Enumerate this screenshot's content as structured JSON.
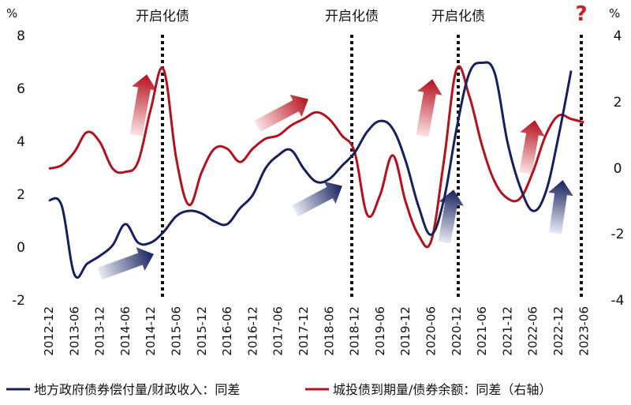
{
  "chart_data": {
    "type": "line",
    "left_axis_unit": "%",
    "right_axis_unit": "%",
    "left_ticks": [
      "8",
      "6",
      "4",
      "2",
      "0",
      "-2"
    ],
    "right_ticks": [
      "4",
      "2",
      "0",
      "-2",
      "-4"
    ],
    "ylim_left": [
      -2,
      8
    ],
    "ylim_right": [
      -4,
      4
    ],
    "x_ticks": [
      "2012-12",
      "2013-06",
      "2013-12",
      "2014-06",
      "2014-12",
      "2015-06",
      "2015-12",
      "2016-06",
      "2016-12",
      "2017-06",
      "2017-12",
      "2018-06",
      "2018-12",
      "2019-06",
      "2019-12",
      "2020-06",
      "2020-12",
      "2021-06",
      "2021-12",
      "2022-06",
      "2022-12",
      "2023-06"
    ],
    "event_lines": [
      {
        "date": "2015-01",
        "label": "开启化债"
      },
      {
        "date": "2018-12",
        "label": "开启化债"
      },
      {
        "date": "2020-12",
        "label": "开启化债"
      },
      {
        "date": "2023-06",
        "label": "?"
      }
    ],
    "series": [
      {
        "name": "地方政府债券偿付量/财政收入：同差",
        "axis": "left",
        "color": "#16205e",
        "x": [
          "2012-12",
          "2013-03",
          "2013-06",
          "2013-09",
          "2013-12",
          "2014-03",
          "2014-06",
          "2014-09",
          "2014-12",
          "2015-03",
          "2015-06",
          "2015-09",
          "2015-12",
          "2016-03",
          "2016-06",
          "2016-09",
          "2016-12",
          "2017-03",
          "2017-06",
          "2017-09",
          "2017-12",
          "2018-03",
          "2018-06",
          "2018-09",
          "2018-12",
          "2019-03",
          "2019-06",
          "2019-09",
          "2019-12",
          "2020-03",
          "2020-06",
          "2020-09",
          "2020-12",
          "2021-03",
          "2021-06",
          "2021-09",
          "2021-12",
          "2022-03",
          "2022-06",
          "2022-09",
          "2022-12",
          "2023-03"
        ],
        "y": [
          1.8,
          1.6,
          -1.0,
          -0.6,
          -0.3,
          0.1,
          0.9,
          0.2,
          0.2,
          0.6,
          1.2,
          1.4,
          1.3,
          1.0,
          0.9,
          1.5,
          2.0,
          3.0,
          3.5,
          3.7,
          3.0,
          2.5,
          2.6,
          3.1,
          3.6,
          4.4,
          4.8,
          4.5,
          3.3,
          1.6,
          0.5,
          1.8,
          4.5,
          6.6,
          7.0,
          6.6,
          4.0,
          2.3,
          1.4,
          2.1,
          4.2,
          6.7
        ]
      },
      {
        "name": "城投债到期量/债券余额：同差（右轴）",
        "axis": "right",
        "color": "#b5101d",
        "x": [
          "2012-12",
          "2013-03",
          "2013-06",
          "2013-09",
          "2013-12",
          "2014-03",
          "2014-06",
          "2014-09",
          "2014-12",
          "2015-03",
          "2015-06",
          "2015-09",
          "2015-12",
          "2016-03",
          "2016-06",
          "2016-09",
          "2016-12",
          "2017-03",
          "2017-06",
          "2017-09",
          "2017-12",
          "2018-03",
          "2018-06",
          "2018-09",
          "2018-12",
          "2019-03",
          "2019-06",
          "2019-09",
          "2019-12",
          "2020-03",
          "2020-06",
          "2020-09",
          "2020-12",
          "2021-03",
          "2021-06",
          "2021-09",
          "2021-12",
          "2022-03",
          "2022-06",
          "2022-09",
          "2022-12",
          "2023-03",
          "2023-06"
        ],
        "y": [
          0.0,
          0.1,
          0.5,
          1.1,
          0.8,
          0.0,
          -0.1,
          0.2,
          1.8,
          3.0,
          0.3,
          -1.1,
          -0.1,
          0.6,
          0.6,
          0.2,
          0.6,
          0.9,
          1.0,
          1.3,
          1.5,
          1.7,
          1.5,
          1.0,
          0.5,
          -1.4,
          -0.8,
          0.4,
          -1.0,
          -2.0,
          -2.2,
          0.2,
          3.0,
          2.2,
          0.7,
          -0.4,
          -0.9,
          -0.9,
          -0.1,
          1.0,
          1.6,
          1.5,
          1.4
        ]
      }
    ]
  },
  "legend": {
    "blue_label": "地方政府债券偿付量/财政收入：同差",
    "red_label": "城投债到期量/债券余额：同差（右轴）"
  },
  "colors": {
    "blue": "#16205e",
    "red": "#b5101d",
    "blue_arrow_fade": "#e9ecf5",
    "red_arrow_fade": "#fbe2e4"
  }
}
